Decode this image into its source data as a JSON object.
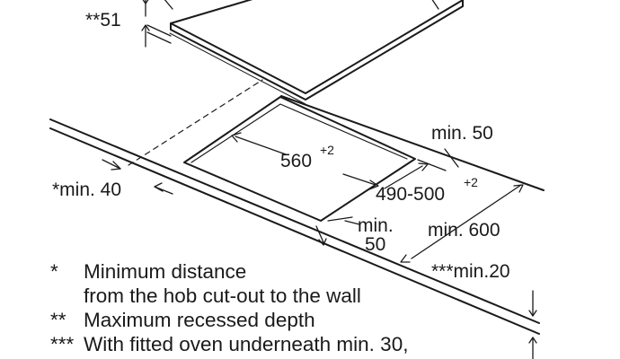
{
  "diagram": {
    "labels": {
      "max_recess": "**51",
      "cutout_width": "560",
      "cutout_width_tol": "+2",
      "wall_distance": "*min. 40",
      "back_margin": "min. 50",
      "cutout_depth": "490-500",
      "cutout_depth_tol": "+2",
      "front_margin_a": "min.",
      "front_margin_b": "50",
      "worktop_depth": "min. 600",
      "worktop_thickness": "***min.20"
    },
    "notes": [
      {
        "mark": "*",
        "text": "Minimum distance"
      },
      {
        "mark": "",
        "text": "from the hob cut-out to the wall"
      },
      {
        "mark": "**",
        "text": "Maximum recessed depth"
      },
      {
        "mark": "***",
        "text": "With fitted oven underneath min. 30,"
      }
    ]
  }
}
